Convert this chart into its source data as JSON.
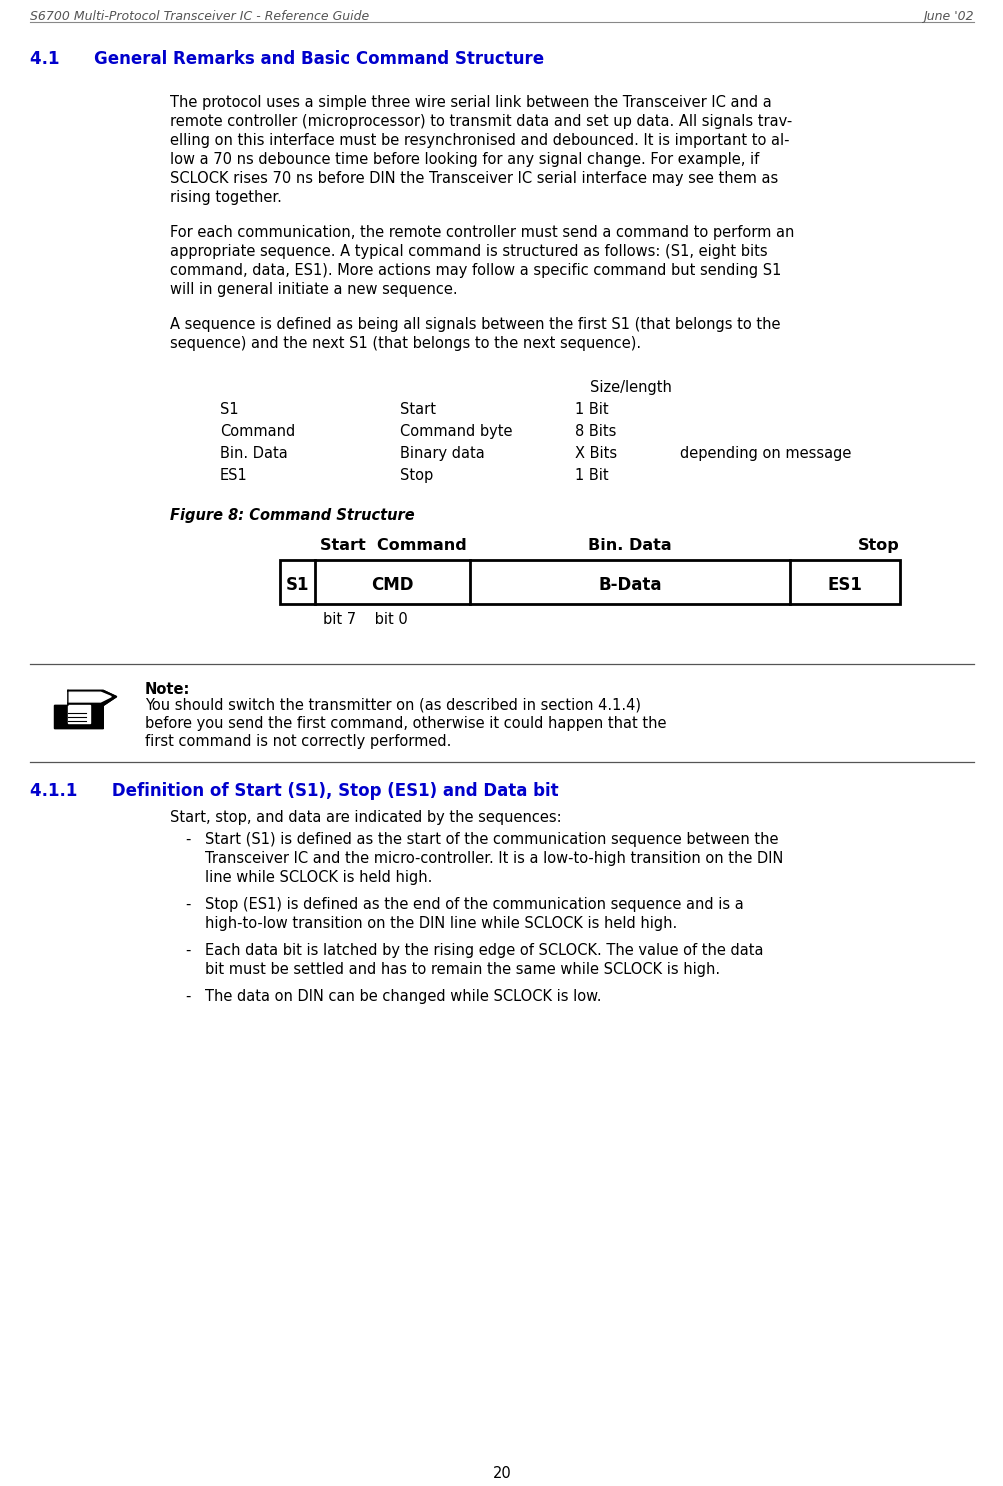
{
  "header_left": "S6700 Multi-Protocol Transceiver IC - Reference Guide",
  "header_right": "June '02",
  "section_title": "4.1      General Remarks and Basic Command Structure",
  "para1_lines": [
    "The protocol uses a simple three wire serial link between the Transceiver IC and a",
    "remote controller (microprocessor) to transmit data and set up data. All signals trav-",
    "elling on this interface must be resynchronised and debounced. It is important to al-",
    "low a 70 ns debounce time before looking for any signal change. For example, if",
    "SCLOCK rises 70 ns before DIN the Transceiver IC serial interface may see them as",
    "rising together."
  ],
  "para2_lines": [
    "For each communication, the remote controller must send a command to perform an",
    "appropriate sequence. A typical command is structured as follows: (S1, eight bits",
    "command, data, ES1). More actions may follow a specific command but sending S1",
    "will in general initiate a new sequence."
  ],
  "para3_lines": [
    "A sequence is defined as being all signals between the first S1 (that belongs to the",
    "sequence) and the next S1 (that belongs to the next sequence)."
  ],
  "table_header": "Size/length",
  "table_rows": [
    [
      "S1",
      "Start",
      "1 Bit",
      ""
    ],
    [
      "Command",
      "Command byte",
      "8 Bits",
      ""
    ],
    [
      "Bin. Data",
      "Binary data",
      "X Bits",
      "depending on message"
    ],
    [
      "ES1",
      "Stop",
      "1 Bit",
      ""
    ]
  ],
  "figure_caption": "Figure 8: Command Structure",
  "diag_label1": "Start  Command",
  "diag_label2": "Bin. Data",
  "diag_label3": "Stop",
  "diag_cells": [
    "S1",
    "CMD",
    "B-Data",
    "ES1"
  ],
  "diag_bottom": "bit 7    bit 0",
  "note_title": "Note:",
  "note_lines": [
    "You should switch the transmitter on (as described in section 4.1.4)",
    "before you send the first command, otherwise it could happen that the",
    "first command is not correctly performed."
  ],
  "sec2_title": "4.1.1      Definition of Start (S1), Stop (ES1) and Data bit",
  "sec2_intro": "Start, stop, and data are indicated by the sequences:",
  "bullet_lines": [
    [
      "Start (S1) is defined as the start of the communication sequence between the",
      "Transceiver IC and the micro-controller. It is a low-to-high transition on the DIN",
      "line while SCLOCK is held high."
    ],
    [
      "Stop (ES1) is defined as the end of the communication sequence and is a",
      "high-to-low transition on the DIN line while SCLOCK is held high."
    ],
    [
      "Each data bit is latched by the rising edge of SCLOCK. The value of the data",
      "bit must be settled and has to remain the same while SCLOCK is high."
    ],
    [
      "The data on DIN can be changed while SCLOCK is low."
    ]
  ],
  "page_number": "20",
  "bg_color": "#ffffff",
  "text_color": "#000000",
  "section_color": "#0000cc",
  "header_text_color": "#555555",
  "line_color": "#888888"
}
